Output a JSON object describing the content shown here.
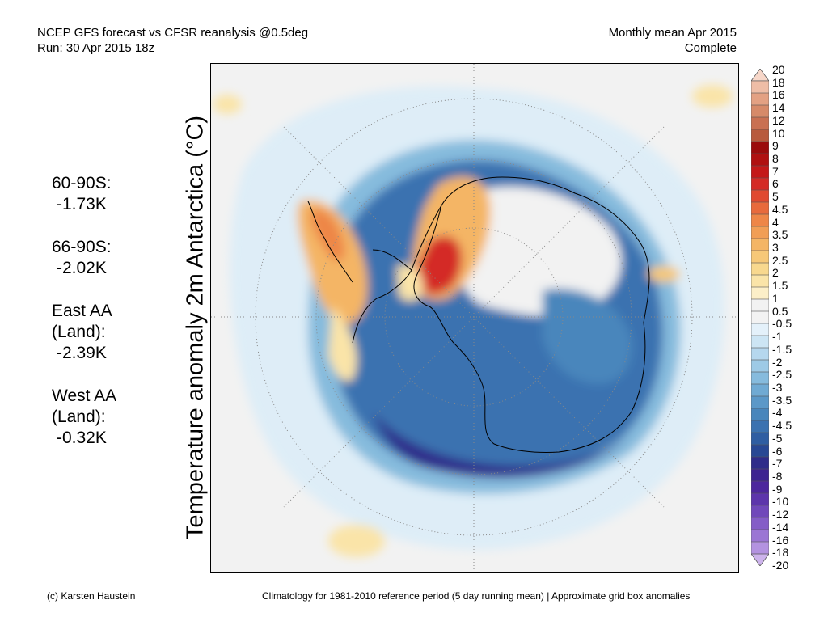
{
  "header": {
    "title_line1": "NCEP GFS forecast vs CFSR reanalysis @0.5deg",
    "title_line2": "Run: 30 Apr 2015 18z",
    "period_line1": "Monthly mean Apr 2015",
    "period_line2": "Complete"
  },
  "axis_label": "Temperature anomaly 2m Antarctica (°C)",
  "stats": [
    {
      "label": "60-90S:",
      "value": "-1.73K"
    },
    {
      "label": "66-90S:",
      "value": "-2.02K"
    },
    {
      "label": "East AA\n(Land):",
      "value": "-2.39K"
    },
    {
      "label": "West AA\n(Land):",
      "value": "-0.32K"
    }
  ],
  "colorbar": {
    "labels": [
      "20",
      "18",
      "16",
      "14",
      "12",
      "10",
      "9",
      "8",
      "7",
      "6",
      "5",
      "4.5",
      "4",
      "3.5",
      "3",
      "2.5",
      "2",
      "1.5",
      "1",
      "0.5",
      "-0.5",
      "-1",
      "-1.5",
      "-2",
      "-2.5",
      "-3",
      "-3.5",
      "-4",
      "-4.5",
      "-5",
      "-6",
      "-7",
      "-8",
      "-9",
      "-10",
      "-12",
      "-14",
      "-16",
      "-18",
      "-20"
    ],
    "colors": [
      "#f7d7c9",
      "#eebda6",
      "#e3a183",
      "#d68a69",
      "#c97052",
      "#b85a3d",
      "#9b0b0b",
      "#b01010",
      "#c41818",
      "#d42a25",
      "#e04a30",
      "#e86a3c",
      "#ee8647",
      "#f19e55",
      "#f4b565",
      "#f6c878",
      "#f8d88e",
      "#fae4a8",
      "#fcefc8",
      "#f2f2f2",
      "#f2f2f2",
      "#e4f1fa",
      "#cce5f4",
      "#b5d7ee",
      "#9dcae6",
      "#86bbdd",
      "#70aad3",
      "#5b98c8",
      "#4886bc",
      "#3b72b0",
      "#2f5ea2",
      "#284894",
      "#2f2c8a",
      "#3d2391",
      "#4d279d",
      "#5d35ab",
      "#7048ba",
      "#845dc7",
      "#9b75d4",
      "#b392e0",
      "#cdb3ec"
    ]
  },
  "footer": {
    "credit": "(c) Karsten Haustein",
    "note": "Climatology for 1981-2010 reference period (5 day running mean) | Approximate grid box anomalies"
  }
}
